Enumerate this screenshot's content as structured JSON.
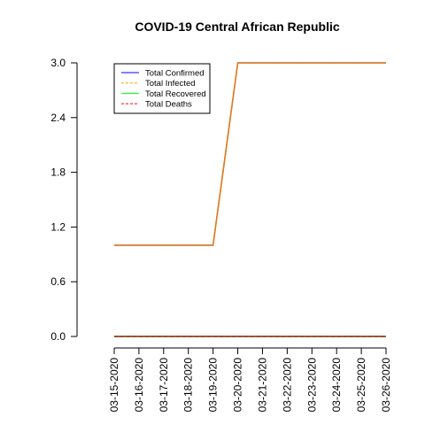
{
  "chart_data": {
    "type": "line",
    "title": "COVID-19 Central African Republic",
    "xlabel": "",
    "ylabel": "",
    "x": [
      "03-15-2020",
      "03-16-2020",
      "03-17-2020",
      "03-18-2020",
      "03-19-2020",
      "03-20-2020",
      "03-21-2020",
      "03-22-2020",
      "03-23-2020",
      "03-24-2020",
      "03-25-2020",
      "03-26-2020"
    ],
    "ylim": [
      0,
      3
    ],
    "yticks": [
      "0.0",
      "0.6",
      "1.2",
      "1.8",
      "2.4",
      "3.0"
    ],
    "legend_position": "top-left",
    "grid": false,
    "series": [
      {
        "name": "Total Confirmed",
        "color": "#0000ff",
        "dash": "solid",
        "values": [
          1,
          1,
          1,
          1,
          1,
          3,
          3,
          3,
          3,
          3,
          3,
          3
        ]
      },
      {
        "name": "Total Infected",
        "color": "#ffa500",
        "dash": "dashed",
        "values": [
          1,
          1,
          1,
          1,
          1,
          3,
          3,
          3,
          3,
          3,
          3,
          3
        ]
      },
      {
        "name": "Total Recovered",
        "color": "#00ff00",
        "dash": "solid",
        "values": [
          0,
          0,
          0,
          0,
          0,
          0,
          0,
          0,
          0,
          0,
          0,
          0
        ]
      },
      {
        "name": "Total Deaths",
        "color": "#ff0000",
        "dash": "dashed",
        "values": [
          0,
          0,
          0,
          0,
          0,
          0,
          0,
          0,
          0,
          0,
          0,
          0
        ]
      }
    ],
    "render_order": [
      0,
      2,
      3,
      1
    ],
    "overlay_colors": [
      "#e07b1a",
      "#8b2a12"
    ]
  }
}
